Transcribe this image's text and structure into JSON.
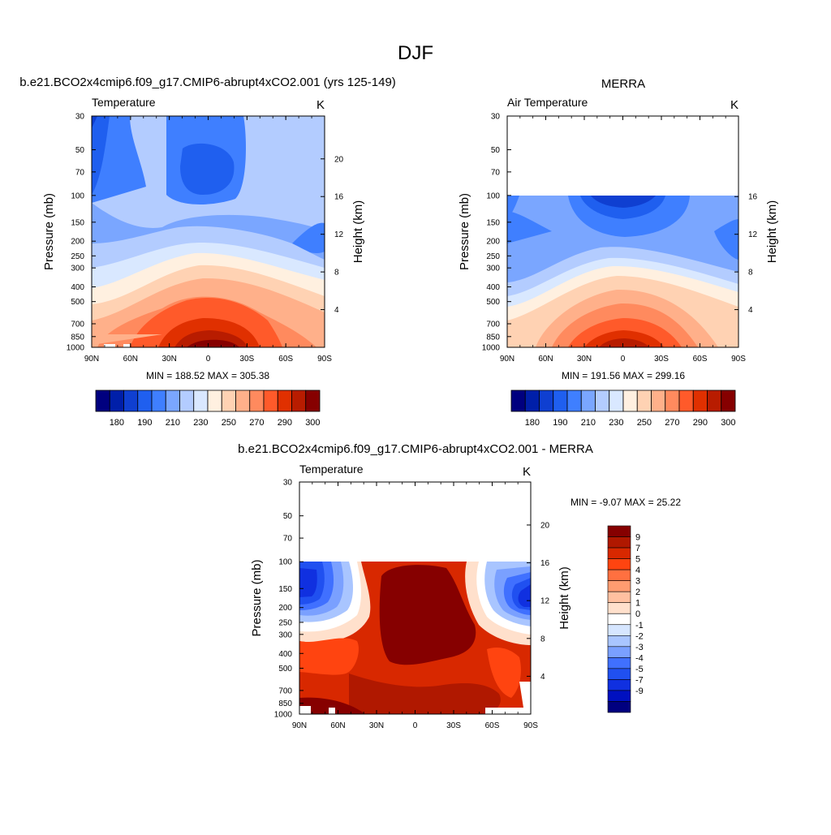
{
  "figure": {
    "title": "DJF"
  },
  "colors": {
    "temperature_levels": [
      "#00007f",
      "#001fa9",
      "#0f3fd1",
      "#1f5fef",
      "#3f7fff",
      "#7aa6ff",
      "#b3ccff",
      "#d9e8ff",
      "#fff0e0",
      "#ffd2b3",
      "#ffb08a",
      "#ff8a5e",
      "#ff5a2a",
      "#e03000",
      "#b81c00",
      "#860000"
    ],
    "difference_levels": [
      "#00007f",
      "#0010c0",
      "#1030e0",
      "#2050f0",
      "#4070ff",
      "#7aa0ff",
      "#a9c5ff",
      "#d6e6ff",
      "#ffffff",
      "#ffe0cc",
      "#ffc0a0",
      "#ff9c70",
      "#ff7040",
      "#ff4410",
      "#d82800",
      "#b01800",
      "#860000"
    ]
  },
  "chart_data": [
    {
      "type": "heatmap",
      "panel_title": "b.e21.BCO2x4cmip6.f09_g17.CMIP6-abrupt4xCO2.001 (yrs 125-149)",
      "left_label": "Temperature",
      "units": "K",
      "x_ticks": [
        "90N",
        "60N",
        "30N",
        "0",
        "30S",
        "60S",
        "90S"
      ],
      "y_ticks": [
        "30",
        "50",
        "70",
        "100",
        "150",
        "200",
        "250",
        "300",
        "400",
        "500",
        "700",
        "850",
        "1000"
      ],
      "y2_ticks": [
        "20",
        "16",
        "12",
        "8",
        "4"
      ],
      "ylabel": "Pressure (mb)",
      "y2label": "Height (km)",
      "stats": "MIN = 188.52  MAX = 305.38",
      "colorbar_labels": [
        "180",
        "190",
        "210",
        "230",
        "250",
        "270",
        "290",
        "300"
      ],
      "data_top_mb": 30
    },
    {
      "type": "heatmap",
      "panel_title": "MERRA",
      "left_label": "Air Temperature",
      "units": "K",
      "x_ticks": [
        "90N",
        "60N",
        "30N",
        "0",
        "30S",
        "60S",
        "90S"
      ],
      "y_ticks": [
        "30",
        "50",
        "70",
        "100",
        "150",
        "200",
        "250",
        "300",
        "400",
        "500",
        "700",
        "850",
        "1000"
      ],
      "y2_ticks": [
        "16",
        "12",
        "8",
        "4"
      ],
      "ylabel": "Pressure (mb)",
      "y2label": "Height (km)",
      "stats": "MIN = 191.56  MAX = 299.16",
      "colorbar_labels": [
        "180",
        "190",
        "210",
        "230",
        "250",
        "270",
        "290",
        "300"
      ],
      "data_top_mb": 100
    },
    {
      "type": "heatmap",
      "panel_title": "b.e21.BCO2x4cmip6.f09_g17.CMIP6-abrupt4xCO2.001 - MERRA",
      "left_label": "Temperature",
      "units": "K",
      "x_ticks": [
        "90N",
        "60N",
        "30N",
        "0",
        "30S",
        "60S",
        "90S"
      ],
      "y_ticks": [
        "30",
        "50",
        "70",
        "100",
        "150",
        "200",
        "250",
        "300",
        "400",
        "500",
        "700",
        "850",
        "1000"
      ],
      "y2_ticks": [
        "20",
        "16",
        "12",
        "8",
        "4"
      ],
      "ylabel": "Pressure (mb)",
      "y2label": "Height (km)",
      "stats": "MIN =  -9.07  MAX =  25.22",
      "colorbar_labels": [
        "9",
        "7",
        "5",
        "4",
        "3",
        "2",
        "1",
        "0",
        "-1",
        "-2",
        "-3",
        "-4",
        "-5",
        "-7",
        "-9"
      ],
      "data_top_mb": 100
    }
  ]
}
